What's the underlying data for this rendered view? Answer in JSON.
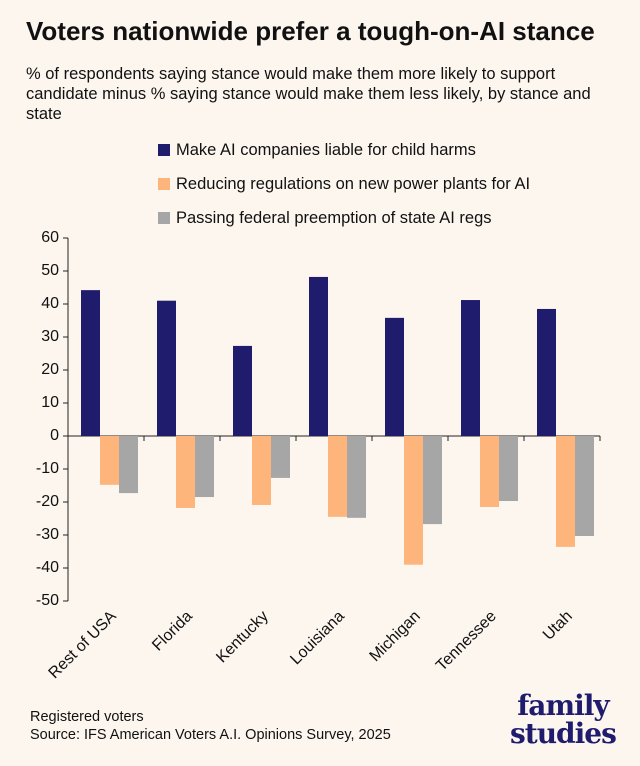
{
  "chart_data": {
    "type": "bar",
    "title": "Voters nationwide prefer a tough-on-AI stance",
    "subtitle": "% of respondents saying stance would make them more likely to support candidate minus % saying stance would make them less likely, by stance and state",
    "categories": [
      "Rest of USA",
      "Florida",
      "Kentucky",
      "Louisiana",
      "Michigan",
      "Tennessee",
      "Utah"
    ],
    "series": [
      {
        "name": "Make AI companies liable for child harms",
        "color": "#1f1c6e",
        "values": [
          44.2,
          41,
          27.3,
          48.2,
          35.8,
          41.2,
          38.5
        ]
      },
      {
        "name": "Reducing regulations on new power plants for AI",
        "color": "#fdb57c",
        "values": [
          -14.8,
          -21.8,
          -20.9,
          -24.5,
          -39,
          -21.5,
          -33.6
        ]
      },
      {
        "name": "Passing federal preemption of state AI regs",
        "color": "#a6a6a6",
        "values": [
          -17.3,
          -18.5,
          -12.7,
          -24.8,
          -26.7,
          -19.7,
          -30.3
        ]
      }
    ],
    "ylim": [
      -50,
      60
    ],
    "yticks": [
      -50,
      -40,
      -30,
      -20,
      -10,
      0,
      10,
      20,
      30,
      40,
      50,
      60
    ],
    "notes": [
      "Registered voters",
      "Source: IFS American Voters A.I. Opinions Survey, 2025"
    ],
    "logo": [
      "family",
      "studies"
    ]
  }
}
